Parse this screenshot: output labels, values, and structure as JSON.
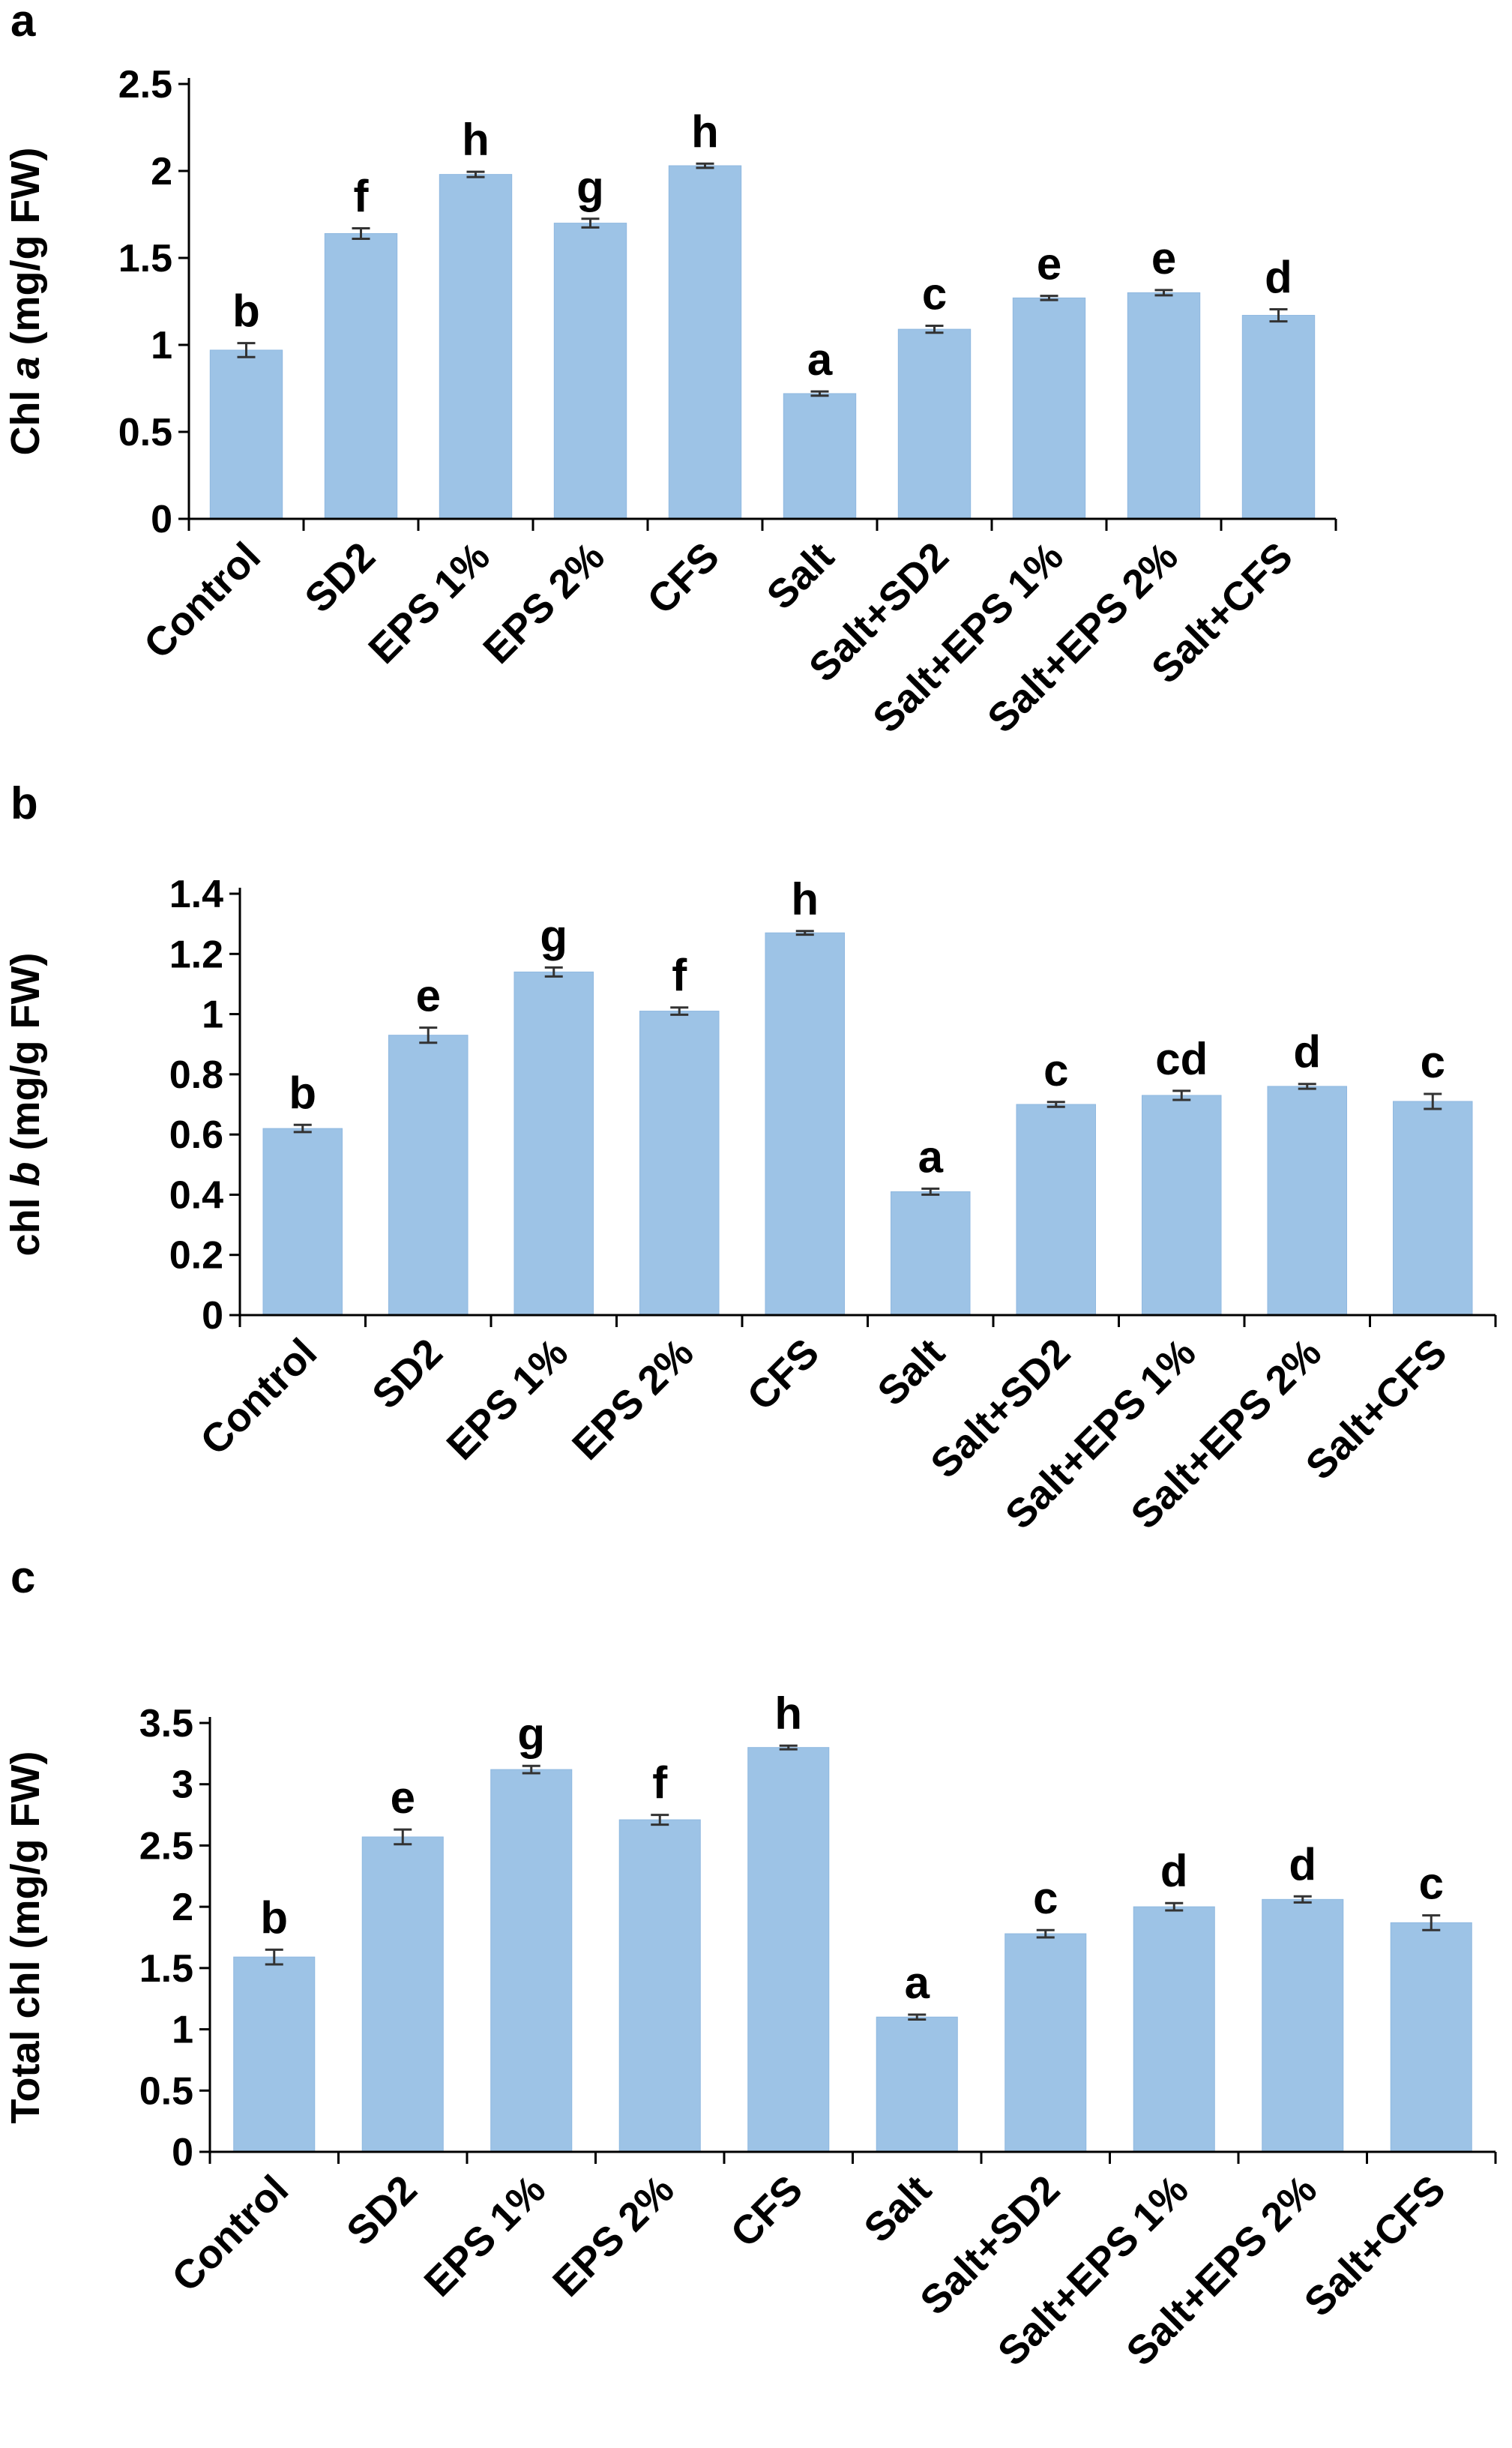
{
  "figure": {
    "panel_letters": [
      "a",
      "b",
      "c"
    ]
  },
  "colors": {
    "bar": "#9dc3e6",
    "bar_edge": "#8fb8e0",
    "axis": "#000000",
    "error": "#333333"
  },
  "chart_data": [
    {
      "type": "bar",
      "panel": "a",
      "ylabel_parts": [
        {
          "text": "Chl ",
          "italic": false
        },
        {
          "text": "a",
          "italic": true
        },
        {
          "text": " (mg/g FW)",
          "italic": false
        }
      ],
      "yticks": [
        "0",
        "0.5",
        "1",
        "1.5",
        "2",
        "2.5"
      ],
      "ylim": [
        0,
        2.5
      ],
      "categories": [
        "Control",
        "SD2",
        "EPS 1%",
        "EPS 2%",
        "CFS",
        "Salt",
        "Salt+SD2",
        "Salt+EPS 1%",
        "Salt+EPS 2%",
        "Salt+CFS"
      ],
      "values": [
        0.97,
        1.64,
        1.98,
        1.7,
        2.03,
        0.72,
        1.09,
        1.27,
        1.3,
        1.17
      ],
      "errors": [
        0.04,
        0.03,
        0.015,
        0.025,
        0.012,
        0.012,
        0.02,
        0.012,
        0.015,
        0.035
      ],
      "significance": [
        "b",
        "f",
        "h",
        "g",
        "h",
        "a",
        "c",
        "e",
        "e",
        "d"
      ]
    },
    {
      "type": "bar",
      "panel": "b",
      "ylabel_parts": [
        {
          "text": "chl ",
          "italic": false
        },
        {
          "text": "b",
          "italic": true
        },
        {
          "text": " (mg/g FW)",
          "italic": false
        }
      ],
      "yticks": [
        "0",
        "0.2",
        "0.4",
        "0.6",
        "0.8",
        "1",
        "1.2",
        "1.4"
      ],
      "ylim": [
        0,
        1.4
      ],
      "categories": [
        "Control",
        "SD2",
        "EPS 1%",
        "EPS 2%",
        "CFS",
        "Salt",
        "Salt+SD2",
        "Salt+EPS 1%",
        "Salt+EPS 2%",
        "Salt+CFS"
      ],
      "values": [
        0.62,
        0.93,
        1.14,
        1.01,
        1.27,
        0.41,
        0.7,
        0.73,
        0.76,
        0.71
      ],
      "errors": [
        0.012,
        0.025,
        0.015,
        0.012,
        0.006,
        0.01,
        0.008,
        0.015,
        0.008,
        0.025
      ],
      "significance": [
        "b",
        "e",
        "g",
        "f",
        "h",
        "a",
        "c",
        "cd",
        "d",
        "c"
      ]
    },
    {
      "type": "bar",
      "panel": "c",
      "ylabel_parts": [
        {
          "text": "Total chl (mg/g FW)",
          "italic": false
        }
      ],
      "yticks": [
        "0",
        "0.5",
        "1",
        "1.5",
        "2",
        "2.5",
        "3",
        "3.5"
      ],
      "ylim": [
        0,
        3.5
      ],
      "categories": [
        "Control",
        "SD2",
        "EPS 1%",
        "EPS 2%",
        "CFS",
        "Salt",
        "Salt+SD2",
        "Salt+EPS 1%",
        "Salt+EPS 2%",
        "Salt+CFS"
      ],
      "values": [
        1.59,
        2.57,
        3.12,
        2.71,
        3.3,
        1.1,
        1.78,
        2.0,
        2.06,
        1.87
      ],
      "errors": [
        0.06,
        0.06,
        0.03,
        0.04,
        0.015,
        0.02,
        0.03,
        0.03,
        0.025,
        0.06
      ],
      "significance": [
        "b",
        "e",
        "g",
        "f",
        "h",
        "a",
        "c",
        "d",
        "d",
        "c"
      ]
    }
  ]
}
